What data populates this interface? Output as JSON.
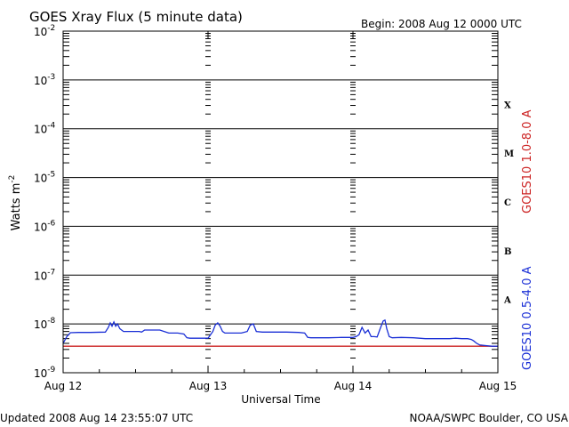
{
  "header": {
    "title": "GOES Xray Flux (5 minute data)",
    "begin": "Begin:  2008 Aug 12 0000 UTC"
  },
  "footer": {
    "updated": "Updated 2008 Aug 14 23:55:07 UTC",
    "credit": "NOAA/SWPC Boulder, CO USA"
  },
  "colors": {
    "long": "#cc2222",
    "short": "#1a2fd6",
    "grid": "#000000"
  },
  "chart_data": {
    "type": "line",
    "title": "GOES Xray Flux (5 minute data)",
    "xlabel": "Universal Time",
    "ylabel": "Watts m",
    "ylabel_sup": "-2",
    "yscale": "log",
    "ylim": [
      1e-09,
      0.01
    ],
    "xlim": [
      0,
      72
    ],
    "x_unit": "hours since 2008 Aug 12 0000 UTC",
    "x_ticks": [
      {
        "value": 0,
        "label": "Aug 12"
      },
      {
        "value": 24,
        "label": "Aug 13"
      },
      {
        "value": 48,
        "label": "Aug 14"
      },
      {
        "value": 72,
        "label": "Aug 15"
      }
    ],
    "y_ticks": [
      {
        "exp": -2,
        "base": "10",
        "sup": "-2"
      },
      {
        "exp": -3,
        "base": "10",
        "sup": "-3"
      },
      {
        "exp": -4,
        "base": "10",
        "sup": "-4"
      },
      {
        "exp": -5,
        "base": "10",
        "sup": "-5"
      },
      {
        "exp": -6,
        "base": "10",
        "sup": "-6"
      },
      {
        "exp": -7,
        "base": "10",
        "sup": "-7"
      },
      {
        "exp": -8,
        "base": "10",
        "sup": "-8"
      },
      {
        "exp": -9,
        "base": "10",
        "sup": "-9"
      }
    ],
    "flare_classes": [
      {
        "label": "X",
        "exp": -3.5
      },
      {
        "label": "M",
        "exp": -4.5
      },
      {
        "label": "C",
        "exp": -5.5
      },
      {
        "label": "B",
        "exp": -6.5
      },
      {
        "label": "A",
        "exp": -7.5
      }
    ],
    "grid": true,
    "series": [
      {
        "name": "GOES10 1.0-8.0 A",
        "color": "#cc2222",
        "x": [
          0,
          70,
          72
        ],
        "y": [
          3.5e-09,
          3.5e-09,
          3.5e-09
        ]
      },
      {
        "name": "GOES10 0.5-4.0 A",
        "color": "#1a2fd6",
        "x": [
          0,
          0.6,
          1.2,
          2.5,
          4.5,
          7,
          7.5,
          7.8,
          8.1,
          8.4,
          8.7,
          9.0,
          9.4,
          10,
          12,
          12.6,
          13,
          13.5,
          14,
          15,
          16,
          17.5,
          19,
          20,
          20.5,
          21,
          22,
          24,
          24.8,
          25.2,
          25.6,
          26,
          26.4,
          26.8,
          27.2,
          28,
          29.5,
          30.5,
          31,
          31.5,
          32,
          33,
          35,
          37,
          39,
          40,
          40.5,
          41,
          42,
          44,
          46,
          47.5,
          48,
          48.5,
          49,
          49.5,
          50,
          50.5,
          51,
          51.5,
          52,
          52.5,
          53,
          53.3,
          53.6,
          54,
          54.5,
          56,
          58,
          60,
          62,
          64,
          65,
          66,
          67,
          67.6,
          68,
          68.5,
          69,
          70,
          71,
          72
        ],
        "y": [
          4e-09,
          5.5e-09,
          6.6e-09,
          6.7e-09,
          6.7e-09,
          6.8e-09,
          8.5e-09,
          1.05e-08,
          9e-09,
          1.1e-08,
          9e-09,
          1e-08,
          8e-09,
          7e-09,
          7e-09,
          7e-09,
          6.8e-09,
          7.5e-09,
          7.5e-09,
          7.5e-09,
          7.5e-09,
          6.5e-09,
          6.5e-09,
          6.2e-09,
          5.2e-09,
          5.1e-09,
          5.1e-09,
          5.1e-09,
          7e-09,
          9.5e-09,
          1.05e-08,
          9e-09,
          7e-09,
          6.5e-09,
          6.5e-09,
          6.5e-09,
          6.5e-09,
          7e-09,
          9.5e-09,
          1e-08,
          7e-09,
          6.8e-09,
          6.8e-09,
          6.8e-09,
          6.7e-09,
          6.5e-09,
          5.3e-09,
          5.2e-09,
          5.2e-09,
          5.2e-09,
          5.3e-09,
          5.3e-09,
          5.3e-09,
          5.5e-09,
          6e-09,
          8.5e-09,
          6.5e-09,
          7.5e-09,
          5.5e-09,
          5.5e-09,
          5.4e-09,
          8e-09,
          1.15e-08,
          1.2e-08,
          8e-09,
          5.5e-09,
          5.2e-09,
          5.3e-09,
          5.2e-09,
          5e-09,
          5e-09,
          5e-09,
          5.1e-09,
          5e-09,
          5e-09,
          4.8e-09,
          4.5e-09,
          4e-09,
          3.7e-09,
          3.6e-09,
          3.5e-09,
          3.5e-09
        ]
      }
    ]
  }
}
